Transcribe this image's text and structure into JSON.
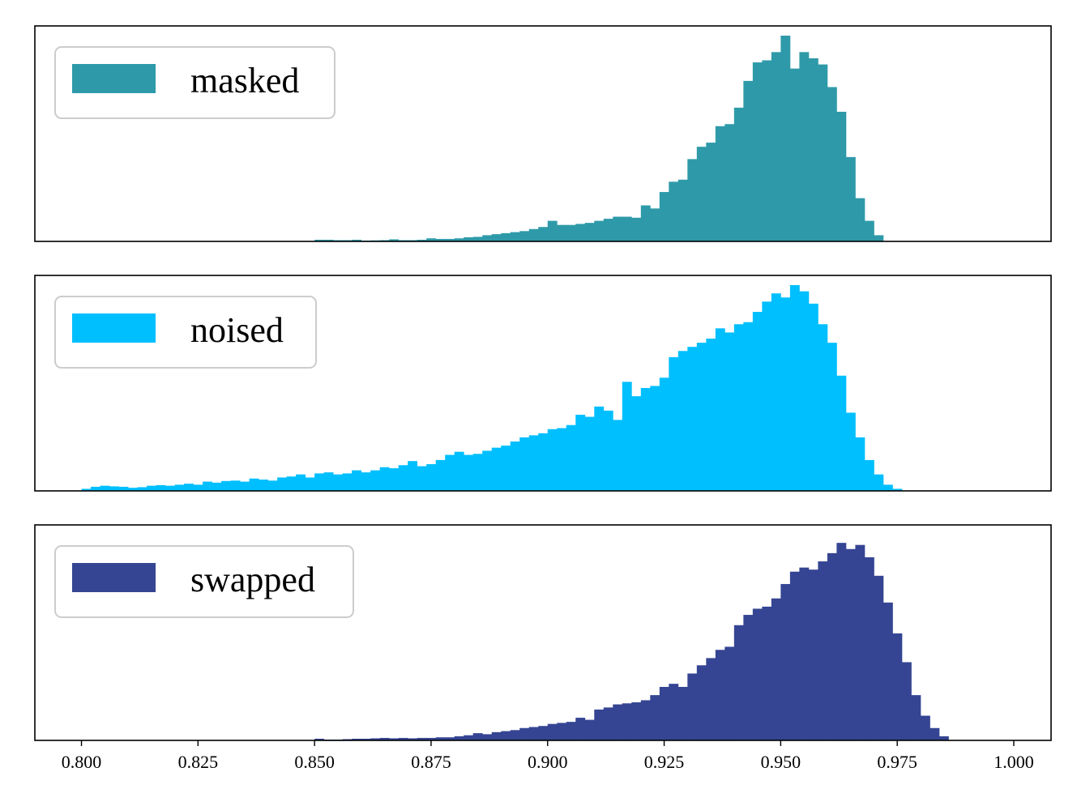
{
  "chart_data": {
    "type": "bar",
    "subtype": "stacked-histogram-panels",
    "x_axis": {
      "range": [
        0.79,
        1.008
      ],
      "ticks": [
        0.8,
        0.825,
        0.85,
        0.875,
        0.9,
        0.925,
        0.95,
        0.975,
        1.0
      ],
      "tick_labels": [
        "0.800",
        "0.825",
        "0.850",
        "0.875",
        "0.900",
        "0.925",
        "0.950",
        "0.975",
        "1.000"
      ],
      "shared": true
    },
    "y_axis": {
      "visible": false
    },
    "grid": false,
    "legend_position": "top-left",
    "bin_width": 0.002,
    "panels": [
      {
        "label": "masked",
        "color": "#2e9aa9",
        "ylim": [
          0,
          1.0
        ],
        "bins_start": 0.85,
        "values": [
          0.008,
          0.008,
          0.006,
          0.006,
          0.008,
          0.004,
          0.005,
          0.006,
          0.01,
          0.006,
          0.006,
          0.008,
          0.015,
          0.012,
          0.012,
          0.015,
          0.02,
          0.022,
          0.03,
          0.035,
          0.04,
          0.045,
          0.05,
          0.06,
          0.07,
          0.1,
          0.08,
          0.08,
          0.085,
          0.09,
          0.1,
          0.11,
          0.12,
          0.12,
          0.115,
          0.175,
          0.16,
          0.24,
          0.29,
          0.3,
          0.4,
          0.46,
          0.48,
          0.56,
          0.57,
          0.65,
          0.78,
          0.87,
          0.88,
          0.92,
          1.0,
          0.84,
          0.92,
          0.89,
          0.86,
          0.75,
          0.63,
          0.41,
          0.21,
          0.1,
          0.03
        ]
      },
      {
        "label": "noised",
        "color": "#00bfff",
        "ylim": [
          0,
          1.0
        ],
        "bins_start": 0.8,
        "values": [
          0.01,
          0.02,
          0.025,
          0.022,
          0.02,
          0.015,
          0.018,
          0.025,
          0.028,
          0.025,
          0.03,
          0.035,
          0.03,
          0.045,
          0.04,
          0.048,
          0.05,
          0.045,
          0.06,
          0.055,
          0.05,
          0.065,
          0.07,
          0.08,
          0.065,
          0.085,
          0.09,
          0.08,
          0.085,
          0.1,
          0.09,
          0.1,
          0.115,
          0.11,
          0.125,
          0.145,
          0.12,
          0.13,
          0.15,
          0.175,
          0.19,
          0.175,
          0.18,
          0.195,
          0.21,
          0.22,
          0.24,
          0.26,
          0.27,
          0.28,
          0.3,
          0.305,
          0.32,
          0.37,
          0.36,
          0.41,
          0.39,
          0.345,
          0.53,
          0.46,
          0.5,
          0.51,
          0.55,
          0.65,
          0.68,
          0.7,
          0.72,
          0.74,
          0.79,
          0.77,
          0.81,
          0.82,
          0.87,
          0.92,
          0.96,
          0.94,
          1.0,
          0.97,
          0.91,
          0.81,
          0.72,
          0.56,
          0.38,
          0.26,
          0.15,
          0.08,
          0.03,
          0.01
        ]
      },
      {
        "label": "swapped",
        "color": "#354593",
        "ylim": [
          0,
          1.0
        ],
        "bins_start": 0.85,
        "values": [
          0.008,
          0.004,
          0.004,
          0.006,
          0.008,
          0.008,
          0.01,
          0.012,
          0.01,
          0.012,
          0.01,
          0.012,
          0.012,
          0.015,
          0.015,
          0.02,
          0.025,
          0.035,
          0.03,
          0.04,
          0.045,
          0.05,
          0.06,
          0.065,
          0.07,
          0.08,
          0.085,
          0.09,
          0.11,
          0.1,
          0.15,
          0.16,
          0.175,
          0.18,
          0.185,
          0.195,
          0.22,
          0.26,
          0.275,
          0.26,
          0.325,
          0.365,
          0.4,
          0.44,
          0.455,
          0.56,
          0.61,
          0.64,
          0.65,
          0.69,
          0.76,
          0.82,
          0.84,
          0.83,
          0.87,
          0.91,
          0.96,
          0.93,
          0.95,
          0.89,
          0.8,
          0.67,
          0.52,
          0.38,
          0.22,
          0.12,
          0.06,
          0.02
        ]
      }
    ]
  }
}
